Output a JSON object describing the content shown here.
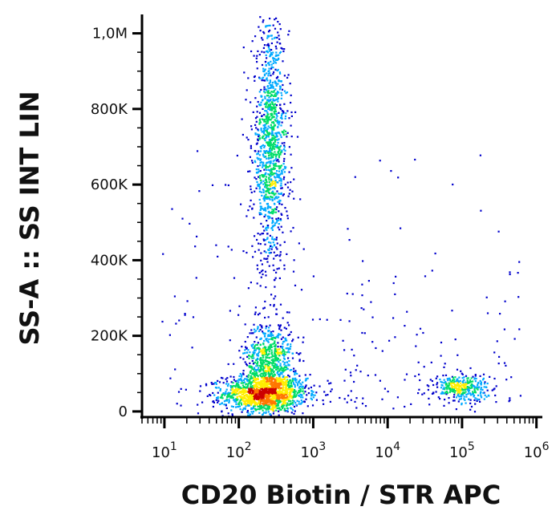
{
  "chart_data": {
    "type": "scatter",
    "style": "density-dot-plot",
    "title": "",
    "xlabel": "CD20 Biotin  /  STR  APC",
    "ylabel": "SS-A :: SS INT LIN",
    "x_scale": "log",
    "xlim": [
      5,
      1200000
    ],
    "ylim": [
      -15000,
      1050000
    ],
    "x_ticks": [
      {
        "value": 10,
        "base": "10",
        "exp": "1"
      },
      {
        "value": 100,
        "base": "10",
        "exp": "2"
      },
      {
        "value": 1000,
        "base": "10",
        "exp": "3"
      },
      {
        "value": 10000,
        "base": "10",
        "exp": "4"
      },
      {
        "value": 100000,
        "base": "10",
        "exp": "5"
      },
      {
        "value": 1000000,
        "base": "10",
        "exp": "6"
      }
    ],
    "y_ticks": [
      {
        "value": 0,
        "label": "0"
      },
      {
        "value": 200000,
        "label": "200K"
      },
      {
        "value": 400000,
        "label": "400K"
      },
      {
        "value": 600000,
        "label": "600K"
      },
      {
        "value": 800000,
        "label": "800K"
      },
      {
        "value": 1000000,
        "label": "1,0M"
      }
    ],
    "grid": false,
    "density_colors": [
      "#0000cc",
      "#00aaff",
      "#00dd66",
      "#ffee00",
      "#ff7700",
      "#cc0000"
    ],
    "populations": [
      {
        "x_center": 220,
        "y_center": 50000,
        "x_spread_decades": 0.28,
        "y_spread": 25000,
        "points": 1400
      },
      {
        "x_center": 250,
        "y_center": 140000,
        "x_spread_decades": 0.16,
        "y_spread": 50000,
        "points": 650
      },
      {
        "x_center": 260,
        "y_center": 700000,
        "x_spread_decades": 0.12,
        "y_spread": 160000,
        "points": 1200
      },
      {
        "x_center": 95000,
        "y_center": 65000,
        "x_spread_decades": 0.18,
        "y_spread": 18000,
        "points": 330
      }
    ]
  }
}
